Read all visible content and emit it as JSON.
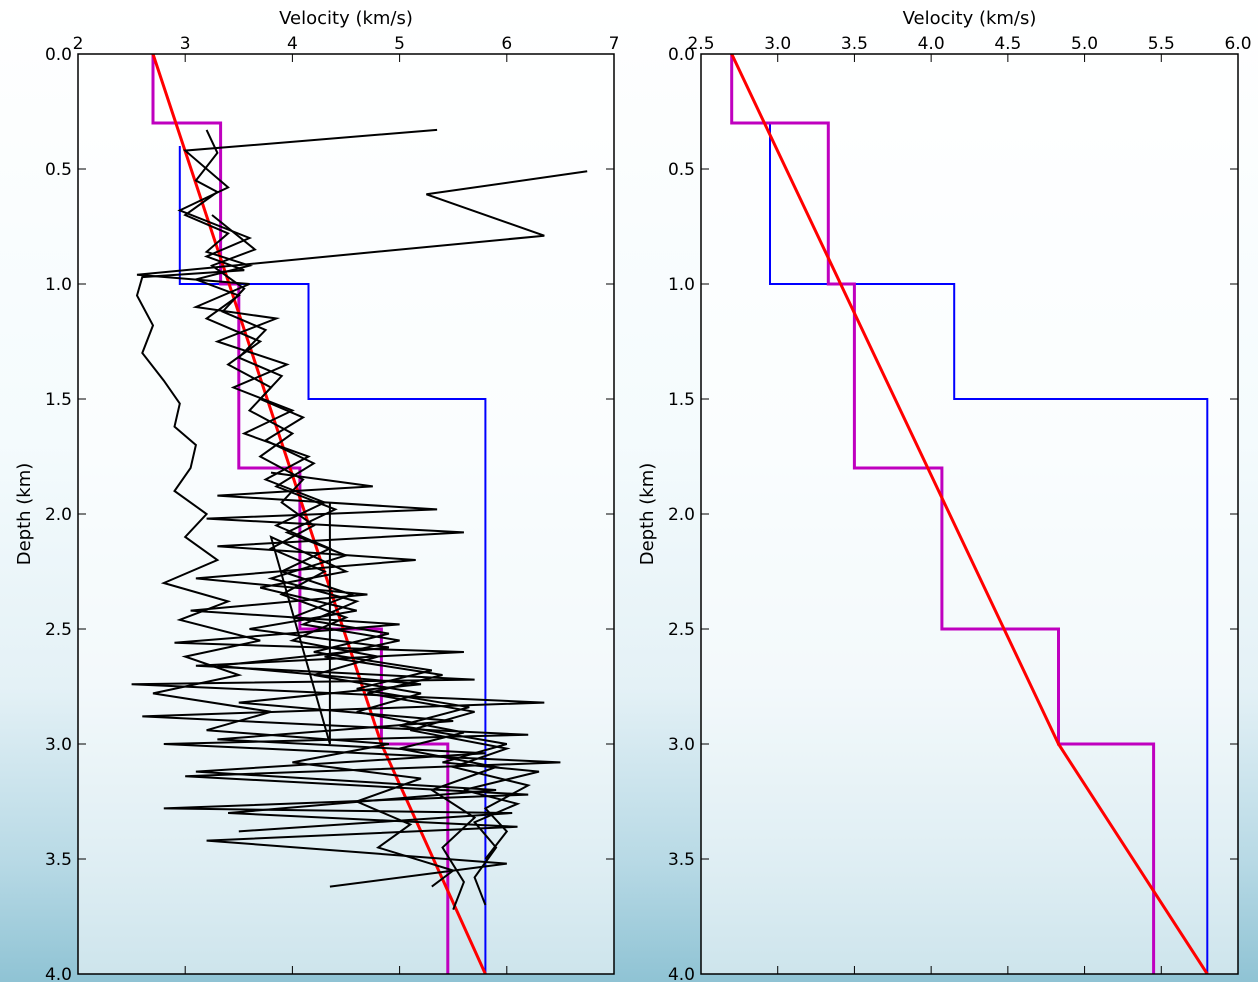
{
  "chart_data": [
    {
      "type": "line",
      "xlabel": "Velocity (km/s)",
      "ylabel": "Depth (km)",
      "xlim": [
        2,
        7
      ],
      "ylim": [
        0.0,
        4.0
      ],
      "x_axis_position": "top",
      "y_inverted": true,
      "grid": false,
      "legend": "none",
      "xticks": [
        "2",
        "3",
        "4",
        "5",
        "6",
        "7"
      ],
      "yticks": [
        "0.0",
        "0.5",
        "1.0",
        "1.5",
        "2.0",
        "2.5",
        "3.0",
        "3.5",
        "4.0"
      ],
      "series": [
        {
          "color": "#0000ff",
          "style": "step",
          "points": [
            [
              2.95,
              0.4
            ],
            [
              2.95,
              1.0
            ],
            [
              4.15,
              1.0
            ],
            [
              4.15,
              1.5
            ],
            [
              5.8,
              1.5
            ],
            [
              5.8,
              4.0
            ]
          ]
        },
        {
          "color": "#bf00bf",
          "style": "step",
          "points": [
            [
              2.7,
              0.0
            ],
            [
              2.7,
              0.3
            ],
            [
              3.33,
              0.3
            ],
            [
              3.33,
              1.0
            ],
            [
              3.5,
              1.0
            ],
            [
              3.5,
              1.8
            ],
            [
              4.07,
              1.8
            ],
            [
              4.07,
              2.5
            ],
            [
              4.83,
              2.5
            ],
            [
              4.83,
              3.0
            ],
            [
              5.45,
              3.0
            ],
            [
              5.45,
              4.0
            ]
          ]
        },
        {
          "color": "#ff0000",
          "style": "line",
          "points": [
            [
              2.7,
              0.0
            ],
            [
              4.83,
              3.0
            ],
            [
              5.8,
              4.0
            ]
          ]
        },
        {
          "color": "#000000",
          "style": "line",
          "points": [
            [
              3.2,
              0.33
            ],
            [
              3.3,
              0.43
            ],
            [
              3.1,
              0.55
            ],
            [
              3.3,
              0.6
            ],
            [
              3.0,
              0.7
            ],
            [
              3.4,
              0.78
            ],
            [
              3.2,
              0.86
            ],
            [
              3.6,
              0.92
            ],
            [
              3.1,
              0.98
            ],
            [
              3.5,
              1.05
            ],
            [
              3.2,
              1.15
            ],
            [
              3.7,
              1.25
            ],
            [
              3.4,
              1.35
            ],
            [
              3.8,
              1.45
            ],
            [
              3.6,
              1.55
            ],
            [
              4.0,
              1.65
            ],
            [
              3.7,
              1.75
            ],
            [
              4.1,
              1.85
            ],
            [
              3.9,
              1.95
            ],
            [
              4.2,
              2.05
            ],
            [
              3.8,
              2.15
            ],
            [
              4.3,
              2.25
            ],
            [
              3.9,
              2.35
            ],
            [
              4.5,
              2.45
            ],
            [
              4.0,
              2.55
            ],
            [
              4.8,
              2.62
            ],
            [
              4.2,
              2.7
            ],
            [
              5.2,
              2.78
            ],
            [
              4.6,
              2.86
            ],
            [
              5.6,
              2.95
            ],
            [
              5.0,
              3.02
            ],
            [
              5.9,
              3.1
            ],
            [
              5.3,
              3.2
            ],
            [
              5.7,
              3.32
            ],
            [
              5.4,
              3.45
            ],
            [
              5.6,
              3.6
            ],
            [
              5.5,
              3.72
            ]
          ]
        },
        {
          "color": "#000000",
          "style": "line",
          "points": [
            [
              5.35,
              0.33
            ],
            [
              3.0,
              0.42
            ],
            [
              3.4,
              0.58
            ],
            [
              2.95,
              0.68
            ],
            [
              3.6,
              0.8
            ],
            [
              3.2,
              0.88
            ],
            [
              3.55,
              0.94
            ],
            [
              2.6,
              0.97
            ],
            [
              2.55,
              1.05
            ],
            [
              2.7,
              1.18
            ],
            [
              2.6,
              1.3
            ],
            [
              2.8,
              1.42
            ],
            [
              2.95,
              1.52
            ],
            [
              2.9,
              1.62
            ],
            [
              3.1,
              1.7
            ],
            [
              3.05,
              1.8
            ],
            [
              2.9,
              1.9
            ],
            [
              3.2,
              2.0
            ],
            [
              3.0,
              2.1
            ],
            [
              3.3,
              2.2
            ],
            [
              2.8,
              2.3
            ],
            [
              3.4,
              2.38
            ],
            [
              2.95,
              2.46
            ],
            [
              3.7,
              2.55
            ],
            [
              3.0,
              2.62
            ],
            [
              3.5,
              2.7
            ],
            [
              2.7,
              2.78
            ],
            [
              3.8,
              2.86
            ],
            [
              3.2,
              2.94
            ],
            [
              4.9,
              3.0
            ],
            [
              4.0,
              3.08
            ],
            [
              5.2,
              3.15
            ],
            [
              4.6,
              3.25
            ],
            [
              5.1,
              3.35
            ],
            [
              4.8,
              3.45
            ],
            [
              5.5,
              3.55
            ],
            [
              5.3,
              3.62
            ]
          ]
        },
        {
          "color": "#000000",
          "style": "line",
          "points": [
            [
              6.75,
              0.51
            ],
            [
              5.25,
              0.61
            ],
            [
              6.35,
              0.79
            ],
            [
              2.55,
              0.96
            ],
            [
              3.6,
              1.0
            ],
            [
              3.1,
              1.1
            ],
            [
              3.85,
              1.15
            ],
            [
              3.3,
              1.25
            ],
            [
              3.95,
              1.35
            ],
            [
              3.45,
              1.45
            ],
            [
              4.0,
              1.55
            ],
            [
              3.55,
              1.65
            ],
            [
              4.15,
              1.75
            ],
            [
              3.75,
              1.85
            ],
            [
              4.3,
              1.95
            ],
            [
              3.85,
              2.05
            ],
            [
              4.35,
              2.15
            ],
            [
              3.9,
              2.25
            ],
            [
              4.55,
              2.35
            ],
            [
              4.0,
              2.45
            ],
            [
              4.9,
              2.52
            ],
            [
              4.2,
              2.6
            ],
            [
              5.3,
              2.68
            ],
            [
              4.6,
              2.76
            ],
            [
              5.65,
              2.84
            ],
            [
              5.0,
              2.92
            ],
            [
              6.0,
              3.0
            ],
            [
              5.4,
              3.08
            ],
            [
              6.3,
              3.12
            ],
            [
              5.6,
              3.2
            ],
            [
              6.1,
              3.26
            ],
            [
              5.7,
              3.34
            ],
            [
              5.9,
              3.45
            ],
            [
              5.7,
              3.58
            ],
            [
              5.8,
              3.7
            ]
          ]
        },
        {
          "color": "#000000",
          "style": "line",
          "points": [
            [
              3.25,
              0.7
            ],
            [
              3.65,
              0.85
            ],
            [
              3.25,
              0.92
            ],
            [
              3.55,
              1.02
            ],
            [
              3.35,
              1.12
            ],
            [
              3.75,
              1.2
            ],
            [
              3.5,
              1.32
            ],
            [
              3.9,
              1.4
            ],
            [
              3.7,
              1.5
            ],
            [
              4.1,
              1.58
            ],
            [
              3.75,
              1.68
            ],
            [
              4.2,
              1.78
            ],
            [
              3.85,
              1.88
            ],
            [
              4.4,
              1.98
            ],
            [
              3.95,
              2.08
            ],
            [
              4.5,
              2.18
            ],
            [
              3.8,
              2.28
            ],
            [
              4.6,
              2.38
            ],
            [
              4.1,
              2.48
            ],
            [
              5.0,
              2.55
            ],
            [
              4.3,
              2.62
            ],
            [
              5.4,
              2.7
            ],
            [
              4.7,
              2.78
            ],
            [
              5.7,
              2.86
            ],
            [
              5.1,
              2.94
            ],
            [
              6.0,
              3.02
            ],
            [
              5.5,
              3.1
            ],
            [
              6.2,
              3.18
            ],
            [
              5.8,
              3.28
            ],
            [
              6.0,
              3.38
            ],
            [
              5.8,
              3.5
            ]
          ]
        },
        {
          "color": "#000000",
          "style": "line",
          "points": [
            [
              3.8,
              1.82
            ],
            [
              4.75,
              1.88
            ],
            [
              3.3,
              1.92
            ],
            [
              5.35,
              1.98
            ],
            [
              3.2,
              2.02
            ],
            [
              5.6,
              2.08
            ],
            [
              3.3,
              2.14
            ],
            [
              5.15,
              2.2
            ],
            [
              3.1,
              2.28
            ],
            [
              4.7,
              2.35
            ],
            [
              3.05,
              2.42
            ],
            [
              5.0,
              2.48
            ],
            [
              2.9,
              2.56
            ],
            [
              5.6,
              2.6
            ],
            [
              3.1,
              2.66
            ],
            [
              5.7,
              2.72
            ],
            [
              2.5,
              2.74
            ],
            [
              6.35,
              2.82
            ],
            [
              2.6,
              2.88
            ],
            [
              6.2,
              2.96
            ],
            [
              2.8,
              3.0
            ],
            [
              6.5,
              3.08
            ],
            [
              3.0,
              3.14
            ],
            [
              6.2,
              3.22
            ],
            [
              2.8,
              3.28
            ],
            [
              6.05,
              3.3
            ],
            [
              3.5,
              3.38
            ]
          ]
        },
        {
          "color": "#000000",
          "style": "line",
          "points": [
            [
              4.35,
              1.95
            ],
            [
              4.35,
              3.0
            ],
            [
              3.8,
              2.1
            ],
            [
              4.5,
              2.25
            ],
            [
              3.7,
              2.32
            ],
            [
              4.6,
              2.42
            ],
            [
              3.6,
              2.5
            ],
            [
              4.9,
              2.58
            ],
            [
              3.3,
              2.66
            ],
            [
              5.2,
              2.74
            ],
            [
              3.5,
              2.82
            ],
            [
              5.5,
              2.9
            ],
            [
              3.3,
              2.98
            ],
            [
              5.8,
              3.04
            ],
            [
              3.1,
              3.12
            ],
            [
              5.9,
              3.2
            ],
            [
              3.4,
              3.3
            ],
            [
              6.1,
              3.36
            ],
            [
              3.2,
              3.42
            ],
            [
              6.0,
              3.52
            ],
            [
              4.35,
              3.62
            ]
          ]
        }
      ]
    },
    {
      "type": "line",
      "xlabel": "Velocity (km/s)",
      "ylabel": "Depth (km)",
      "xlim": [
        2.5,
        6.0
      ],
      "ylim": [
        0.0,
        4.0
      ],
      "x_axis_position": "top",
      "y_inverted": true,
      "grid": false,
      "legend": "none",
      "xticks": [
        "2.5",
        "3.0",
        "3.5",
        "4.0",
        "4.5",
        "5.0",
        "5.5",
        "6.0"
      ],
      "yticks": [
        "0.0",
        "0.5",
        "1.0",
        "1.5",
        "2.0",
        "2.5",
        "3.0",
        "3.5",
        "4.0"
      ],
      "series": [
        {
          "color": "#0000ff",
          "style": "step",
          "points": [
            [
              2.95,
              0.3
            ],
            [
              2.95,
              1.0
            ],
            [
              4.15,
              1.0
            ],
            [
              4.15,
              1.5
            ],
            [
              5.8,
              1.5
            ],
            [
              5.8,
              4.0
            ]
          ]
        },
        {
          "color": "#bf00bf",
          "style": "step",
          "points": [
            [
              2.7,
              0.0
            ],
            [
              2.7,
              0.3
            ],
            [
              3.33,
              0.3
            ],
            [
              3.33,
              1.0
            ],
            [
              3.5,
              1.0
            ],
            [
              3.5,
              1.8
            ],
            [
              4.07,
              1.8
            ],
            [
              4.07,
              2.5
            ],
            [
              4.83,
              2.5
            ],
            [
              4.83,
              3.0
            ],
            [
              5.45,
              3.0
            ],
            [
              5.45,
              4.0
            ]
          ]
        },
        {
          "color": "#ff0000",
          "style": "line",
          "points": [
            [
              2.7,
              0.0
            ],
            [
              4.83,
              3.0
            ],
            [
              5.8,
              4.0
            ]
          ]
        }
      ]
    }
  ]
}
